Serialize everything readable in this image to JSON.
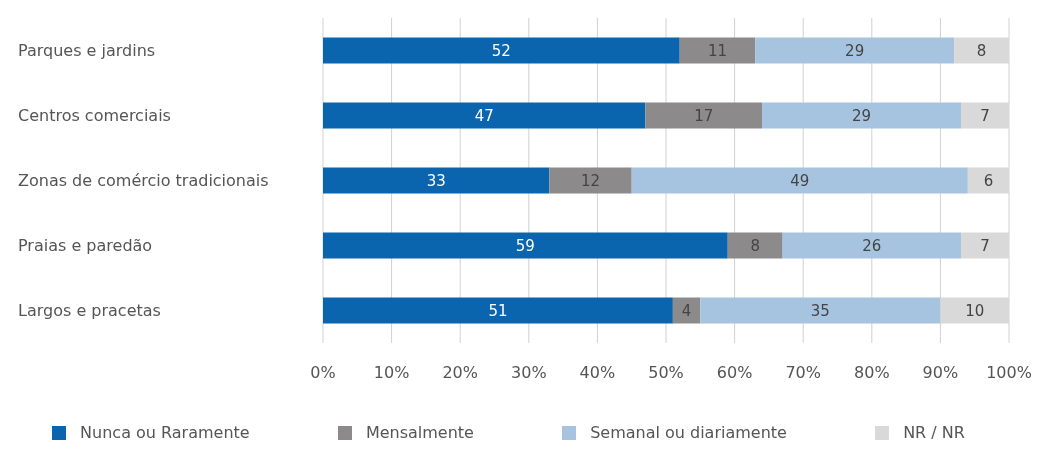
{
  "chart_data": {
    "type": "bar",
    "orientation": "horizontal",
    "stacked": true,
    "data_labels": true,
    "grid": "x",
    "legend": "bottom",
    "categories": [
      "Parques e jardins",
      "Centros comerciais",
      "Zonas de comércio tradicionais",
      "Praias e paredão",
      "Largos e pracetas"
    ],
    "xlim": [
      0,
      100
    ],
    "xticks": [
      {
        "value": 0,
        "label": "0%"
      },
      {
        "value": 10,
        "label": "10%"
      },
      {
        "value": 20,
        "label": "20%"
      },
      {
        "value": 30,
        "label": "30%"
      },
      {
        "value": 40,
        "label": "40%"
      },
      {
        "value": 50,
        "label": "50%"
      },
      {
        "value": 60,
        "label": "60%"
      },
      {
        "value": 70,
        "label": "70%"
      },
      {
        "value": 80,
        "label": "80%"
      },
      {
        "value": 90,
        "label": "90%"
      },
      {
        "value": 100,
        "label": "100%"
      }
    ],
    "series": [
      {
        "name": "Nunca ou Raramente",
        "color": "#0a64ae",
        "values": [
          52,
          47,
          33,
          59,
          51
        ]
      },
      {
        "name": "Mensalmente",
        "color": "#8c8a8a",
        "values": [
          11,
          17,
          12,
          8,
          4
        ]
      },
      {
        "name": "Semanal ou diariamente",
        "color": "#a6c4e0",
        "values": [
          29,
          29,
          49,
          26,
          35
        ]
      },
      {
        "name": "NR / NR",
        "color": "#d9d9d9",
        "values": [
          8,
          7,
          6,
          7,
          10
        ]
      }
    ]
  }
}
